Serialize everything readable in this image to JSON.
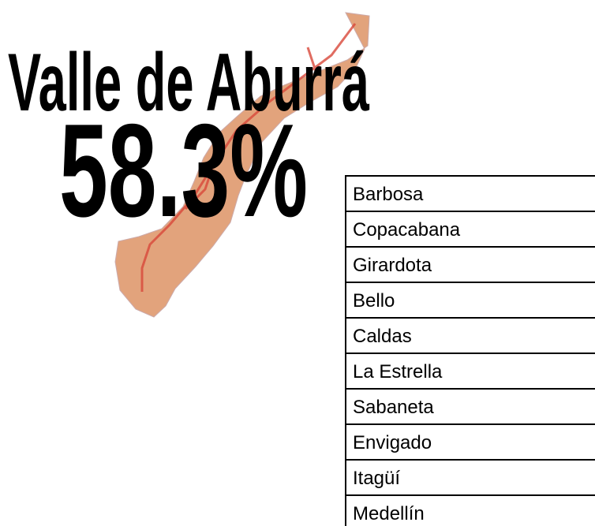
{
  "header": {
    "title": "Valle de Aburrá",
    "value": "58.3%"
  },
  "list": {
    "items": [
      "Barbosa",
      "Copacabana",
      "Girardota",
      "Bello",
      "Caldas",
      "La Estrella",
      "Sabaneta",
      "Envigado",
      "Itagüí",
      "Medellín"
    ]
  }
}
